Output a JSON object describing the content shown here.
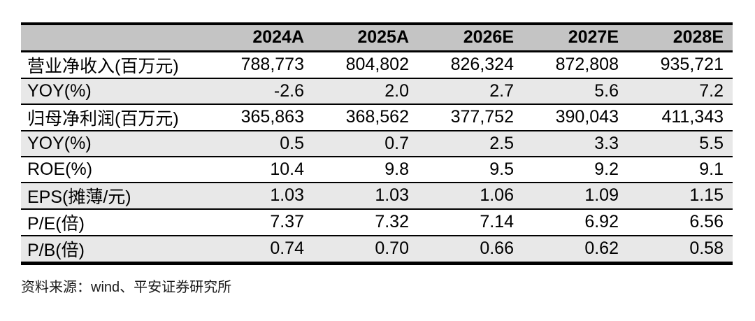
{
  "colors": {
    "header_bg": "#c4c4c4",
    "row_alt_bg": "#e8e8e8",
    "border": "#000000",
    "text": "#000000"
  },
  "chart_data": {
    "type": "table",
    "title": "",
    "columns": [
      "",
      "2024A",
      "2025A",
      "2026E",
      "2027E",
      "2028E"
    ],
    "rows": [
      {
        "label": "营业净收入(百万元)",
        "values": [
          "788,773",
          "804,802",
          "826,324",
          "872,808",
          "935,721"
        ]
      },
      {
        "label": "YOY(%)",
        "values": [
          "-2.6",
          "2.0",
          "2.7",
          "5.6",
          "7.2"
        ]
      },
      {
        "label": "归母净利润(百万元)",
        "values": [
          "365,863",
          "368,562",
          "377,752",
          "390,043",
          "411,343"
        ]
      },
      {
        "label": "YOY(%)",
        "values": [
          "0.5",
          "0.7",
          "2.5",
          "3.3",
          "5.5"
        ]
      },
      {
        "label": "ROE(%)",
        "values": [
          "10.4",
          "9.8",
          "9.5",
          "9.2",
          "9.1"
        ]
      },
      {
        "label": "EPS(摊薄/元)",
        "values": [
          "1.03",
          "1.03",
          "1.06",
          "1.09",
          "1.15"
        ]
      },
      {
        "label": "P/E(倍)",
        "values": [
          "7.37",
          "7.32",
          "7.14",
          "6.92",
          "6.56"
        ]
      },
      {
        "label": "P/B(倍)",
        "values": [
          "0.74",
          "0.70",
          "0.66",
          "0.62",
          "0.58"
        ]
      }
    ],
    "layout_hints": {
      "header_style": "gray band, bold, thick black rules above and below",
      "row_striping": "white / light-gray alternating, thin black rules between rows",
      "value_alignment": "right",
      "label_alignment": "left"
    }
  },
  "footer": {
    "source_label": "资料来源：wind、平安证券研究所"
  }
}
